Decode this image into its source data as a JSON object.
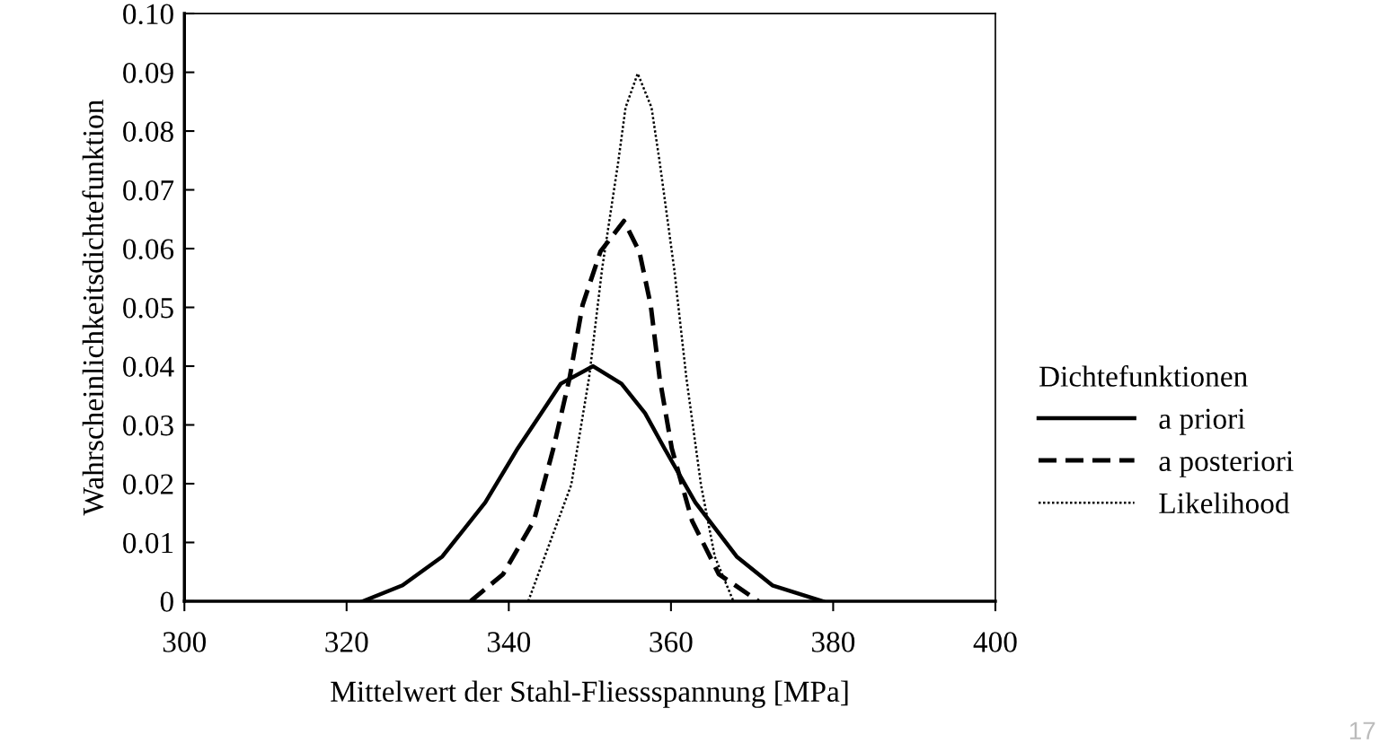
{
  "chart_data": {
    "type": "line",
    "xlabel": "Mittelwert der Stahl-Fliessspannung [MPa]",
    "ylabel": "Wahrscheinlichkeitsdichtefunktion",
    "legend_title": "Dichtefunktionen",
    "legend": "right",
    "grid": false,
    "xlim": [
      300,
      400
    ],
    "xticks": [
      300,
      320,
      340,
      360,
      380,
      400
    ],
    "ylim": [
      0,
      0.1
    ],
    "yticks": [
      0,
      {
        "value": 0.01,
        "label": "0.01"
      },
      {
        "value": 0.02,
        "label": "0.02"
      },
      {
        "value": 0.03,
        "label": "0.03"
      },
      {
        "value": 0.04,
        "label": "0.04"
      },
      {
        "value": 0.05,
        "label": "0.05"
      },
      {
        "value": 0.06,
        "label": "0.06"
      },
      {
        "value": 0.07,
        "label": "0.07"
      },
      {
        "value": 0.08,
        "label": "0.08"
      },
      {
        "value": 0.09,
        "label": "0.09"
      },
      {
        "value": 0.1,
        "label": "0.10"
      }
    ],
    "annotations": [
      "17"
    ],
    "series": [
      {
        "name": "a priori",
        "color": "#000000",
        "line_style": "solid",
        "x": [
          322.0,
          326.9,
          331.8,
          337.1,
          341.1,
          344.0,
          346.4,
          350.4,
          353.9,
          356.8,
          359.2,
          363.0,
          368.1,
          372.5,
          378.7
        ],
        "values": [
          0,
          0.0027,
          0.0076,
          0.0168,
          0.026,
          0.032,
          0.037,
          0.04,
          0.037,
          0.032,
          0.026,
          0.0168,
          0.0076,
          0.0027,
          0
        ]
      },
      {
        "name": "a posteriori",
        "color": "#000000",
        "line_style": "dashed",
        "x": [
          335.3,
          339.3,
          343.1,
          345.5,
          347.5,
          349.1,
          351.3,
          354.2,
          356.1,
          357.5,
          358.6,
          360.1,
          362.6,
          365.9,
          370.8
        ],
        "values": [
          0,
          0.0046,
          0.0137,
          0.026,
          0.038,
          0.0504,
          0.0595,
          0.0647,
          0.0595,
          0.0504,
          0.038,
          0.026,
          0.0137,
          0.0046,
          0
        ]
      },
      {
        "name": "Likelihood",
        "color": "#000000",
        "line_style": "dotted",
        "x": [
          342.4,
          347.7,
          349.9,
          351.5,
          353.5,
          354.4,
          355.9,
          357.6,
          358.6,
          360.4,
          361.9,
          363.7,
          365.4,
          367.7
        ],
        "values": [
          0,
          0.0198,
          0.038,
          0.0565,
          0.0748,
          0.084,
          0.0898,
          0.084,
          0.0748,
          0.0565,
          0.038,
          0.0198,
          0.0076,
          0
        ]
      }
    ]
  }
}
